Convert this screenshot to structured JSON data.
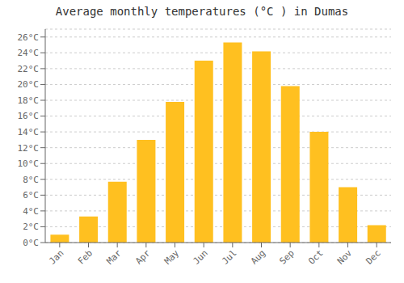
{
  "chart_data": {
    "type": "bar",
    "title": "Average monthly temperatures (°C ) in Dumas",
    "categories": [
      "Jan",
      "Feb",
      "Mar",
      "Apr",
      "May",
      "Jun",
      "Jul",
      "Aug",
      "Sep",
      "Oct",
      "Nov",
      "Dec"
    ],
    "values": [
      1,
      3.3,
      7.7,
      13,
      17.8,
      23,
      25.3,
      24.2,
      19.8,
      14,
      7,
      2.2
    ],
    "color": "#FFC020",
    "ylim": [
      0,
      27
    ],
    "yticks": [
      {
        "value": 0,
        "label": "0°C"
      },
      {
        "value": 2,
        "label": "2°C"
      },
      {
        "value": 4,
        "label": "4°C"
      },
      {
        "value": 6,
        "label": "6°C"
      },
      {
        "value": 8,
        "label": "8°C"
      },
      {
        "value": 10,
        "label": "10°C"
      },
      {
        "value": 12,
        "label": "12°C"
      },
      {
        "value": 14,
        "label": "14°C"
      },
      {
        "value": 16,
        "label": "16°C"
      },
      {
        "value": 18,
        "label": "18°C"
      },
      {
        "value": 20,
        "label": "20°C"
      },
      {
        "value": 22,
        "label": "22°C"
      },
      {
        "value": 24,
        "label": "24°C"
      },
      {
        "value": 26,
        "label": "26°C"
      }
    ],
    "grid": true
  }
}
